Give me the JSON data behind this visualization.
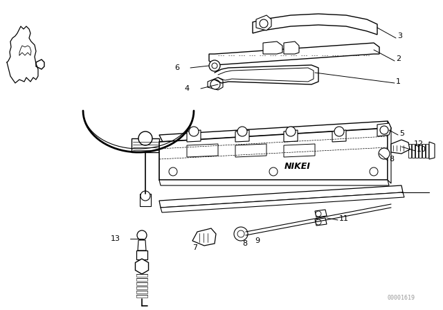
{
  "background_color": "#ffffff",
  "line_color": "#000000",
  "watermark": "00001619",
  "fig_width": 6.4,
  "fig_height": 4.48,
  "dpi": 100
}
